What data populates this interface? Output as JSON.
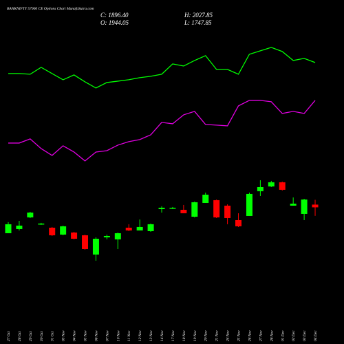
{
  "chart_data": {
    "type": "candlestick",
    "title": "BANKNIFTY 57900  CE Options Chart MunafaSutra.com",
    "summary": [
      "C: 1896.40",
      "O: 1944.05",
      "H: 2027.85",
      "L: 1747.85"
    ],
    "categories": [
      "27 Oct",
      "28 Oct",
      "29 Oct",
      "30 Oct",
      "31 Oct",
      "03 Nov",
      "04 Nov",
      "05 Nov",
      "06 Nov",
      "07 Nov",
      "10 Nov",
      "11 Nov",
      "12 Nov",
      "13 Nov",
      "14 Nov",
      "17 Nov",
      "18 Nov",
      "19 Nov",
      "20 Nov",
      "21 Nov",
      "24 Nov",
      "25 Nov",
      "26 Nov",
      "27 Nov",
      "28 Nov",
      "01 Dec",
      "02 Dec",
      "03 Dec",
      "04 Dec"
    ],
    "open": [
      1447,
      1519,
      1722,
      1603,
      1543,
      1423,
      1459,
      1411,
      1076,
      1375,
      1340,
      1543,
      1495,
      1483,
      1866,
      1878,
      1854,
      1734,
      1973,
      2021,
      1926,
      1674,
      1746,
      2177,
      2260,
      2332,
      1926,
      1782,
      1944.05
    ],
    "high": [
      1639,
      1662,
      1818,
      1627,
      1555,
      1579,
      1471,
      1423,
      1375,
      1423,
      1459,
      1603,
      1686,
      1615,
      1914,
      1902,
      1938,
      1997,
      2153,
      2033,
      1949,
      1794,
      2153,
      2368,
      2356,
      2344,
      2069,
      2045,
      2027.85
    ],
    "low": [
      1447,
      1495,
      1710,
      1591,
      1399,
      1411,
      1340,
      1160,
      969,
      1340,
      1172,
      1483,
      1495,
      1471,
      1806,
      1866,
      1794,
      1722,
      1973,
      1710,
      1603,
      1555,
      1746,
      2093,
      2248,
      2189,
      1926,
      1674,
      1747.85
    ],
    "close": [
      1603,
      1579,
      1806,
      1615,
      1411,
      1567,
      1351,
      1172,
      1351,
      1399,
      1447,
      1495,
      1555,
      1603,
      1890,
      1890,
      1794,
      1985,
      2117,
      1722,
      1710,
      1567,
      2129,
      2248,
      2332,
      2201,
      1961,
      2033,
      1896.4
    ],
    "up_color": "#00ff00",
    "down_color": "#ff0000",
    "series": [
      {
        "color": "#00ff00",
        "values": [
          4222,
          4222,
          4210,
          4330,
          4222,
          4114,
          4198,
          4078,
          3971,
          4066,
          4090,
          4114,
          4150,
          4174,
          4210,
          4389,
          4353,
          4449,
          4533,
          4294,
          4294,
          4210,
          4557,
          4617,
          4676,
          4605,
          4449,
          4485,
          4413
        ]
      },
      {
        "color": "#e000e0",
        "values": [
          3014,
          3014,
          3086,
          2918,
          2799,
          2966,
          2858,
          2703,
          2858,
          2882,
          2978,
          3038,
          3074,
          3157,
          3373,
          3349,
          3504,
          3564,
          3337,
          3325,
          3313,
          3660,
          3755,
          3755,
          3732,
          3528,
          3564,
          3528,
          3755
        ]
      }
    ],
    "ylim": [
      0,
      5500
    ]
  }
}
